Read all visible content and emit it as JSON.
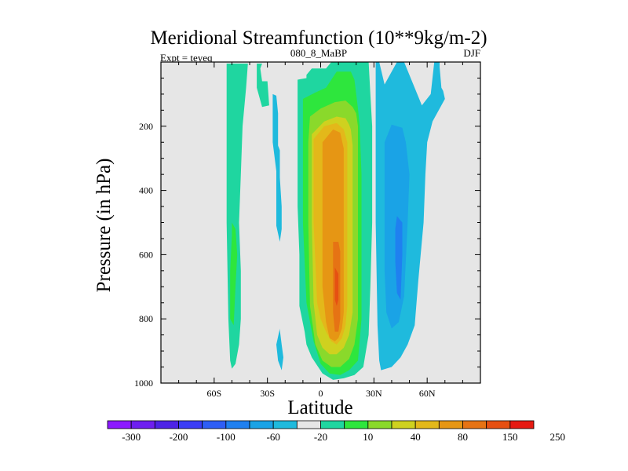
{
  "chart_data": {
    "type": "contour",
    "title": "Meridional Streamfunction (10**9kg/m-2)",
    "left_label": "Expt = teyeq",
    "center_label": "080_8_MaBP",
    "right_label": "DJF",
    "xlabel": "Latitude",
    "ylabel": "Pressure (in hPa)",
    "xlim": [
      -90,
      90
    ],
    "ylim": [
      1000,
      0
    ],
    "x_ticks": [
      {
        "value": -60,
        "label": "60S"
      },
      {
        "value": -30,
        "label": "30S"
      },
      {
        "value": 0,
        "label": "0"
      },
      {
        "value": 30,
        "label": "30N"
      },
      {
        "value": 60,
        "label": "60N"
      }
    ],
    "y_ticks": [
      {
        "value": 200,
        "label": "200"
      },
      {
        "value": 400,
        "label": "400"
      },
      {
        "value": 600,
        "label": "600"
      },
      {
        "value": 800,
        "label": "800"
      },
      {
        "value": 1000,
        "label": "1000"
      }
    ],
    "background_color": "#e6e6e6",
    "colorbar": {
      "colors": [
        "#8c1aff",
        "#6e1ff0",
        "#4d23e6",
        "#3b3df5",
        "#2e5ef5",
        "#1f80f0",
        "#1aa3e6",
        "#1fbadd",
        "#e6e6e6",
        "#1fd6a0",
        "#2ee63d",
        "#8ad92b",
        "#cfd11f",
        "#e3b81a",
        "#e69614",
        "#e67314",
        "#e65012",
        "#e61a12"
      ],
      "labels": [
        "-300",
        "-200",
        "-100",
        "-60",
        "-20",
        "10",
        "40",
        "80",
        "150",
        "250"
      ]
    },
    "contour_regions": [
      {
        "name": "sh-cell-outer",
        "level": 10,
        "color": "#1fd6a0",
        "lat": [
          -53,
          -41,
          -42,
          -44,
          -45,
          -46,
          -45,
          -45,
          -46,
          -48,
          -50,
          -51,
          -52,
          -53,
          -53
        ],
        "pres": [
          5,
          5,
          80,
          200,
          350,
          500,
          650,
          800,
          880,
          940,
          955,
          930,
          800,
          500,
          200
        ]
      },
      {
        "name": "sh-cell-inner",
        "level": 40,
        "color": "#2ee63d",
        "lat": [
          -50,
          -48,
          -47,
          -48,
          -49,
          -51,
          -51,
          -50
        ],
        "pres": [
          500,
          520,
          600,
          700,
          820,
          800,
          650,
          540
        ]
      },
      {
        "name": "sh-west-patch-a",
        "level": 10,
        "color": "#1fd6a0",
        "lat": [
          -36,
          -33,
          -34,
          -33,
          -30,
          -29,
          -33,
          -36
        ],
        "pres": [
          5,
          5,
          20,
          60,
          60,
          135,
          140,
          80
        ]
      },
      {
        "name": "sh-neg-patch-a",
        "level": -20,
        "color": "#1fbadd",
        "lat": [
          -27,
          -25,
          -24,
          -24,
          -24,
          -25,
          -27,
          -27
        ],
        "pres": [
          100,
          105,
          160,
          240,
          320,
          340,
          250,
          160
        ]
      },
      {
        "name": "sh-neg-patch-b",
        "level": -20,
        "color": "#1fbadd",
        "lat": [
          -24,
          -23,
          -23,
          -22,
          -22,
          -23,
          -25,
          -25
        ],
        "pres": [
          260,
          275,
          360,
          450,
          520,
          560,
          510,
          330
        ]
      },
      {
        "name": "sh-neg-patch-c",
        "level": -20,
        "color": "#1fbadd",
        "lat": [
          -23,
          -22,
          -21,
          -22,
          -24,
          -25,
          -23
        ],
        "pres": [
          835,
          880,
          920,
          960,
          930,
          880,
          830
        ]
      },
      {
        "name": "hadley-10",
        "level": 10,
        "color": "#1fd6a0",
        "lat": [
          -13,
          -8,
          -8,
          -5,
          3,
          6,
          7,
          12,
          20,
          27,
          28,
          29,
          29,
          28,
          27,
          24,
          19,
          13,
          7,
          1,
          -5,
          -8,
          -9,
          -12,
          -12,
          -13,
          -13,
          -13,
          -13
        ],
        "pres": [
          55,
          50,
          40,
          20,
          20,
          0,
          0,
          0,
          0,
          0,
          100,
          200,
          500,
          700,
          850,
          950,
          975,
          985,
          990,
          970,
          920,
          880,
          840,
          760,
          600,
          450,
          300,
          150,
          80
        ]
      },
      {
        "name": "hadley-40",
        "level": 40,
        "color": "#2ee63d",
        "lat": [
          -10,
          -3,
          3,
          9,
          17,
          19,
          21,
          22,
          23,
          23,
          21,
          16,
          11,
          5,
          0,
          -4,
          -8,
          -10,
          -10
        ],
        "pres": [
          115,
          95,
          80,
          30,
          30,
          55,
          145,
          200,
          350,
          800,
          930,
          960,
          975,
          970,
          940,
          870,
          750,
          500,
          250
        ]
      },
      {
        "name": "hadley-80",
        "level": 80,
        "color": "#8ad92b",
        "lat": [
          -6,
          0,
          8,
          14,
          18,
          20,
          21,
          21,
          19,
          16,
          11,
          6,
          1,
          -3,
          -6,
          -7,
          -7
        ],
        "pres": [
          170,
          145,
          125,
          120,
          140,
          160,
          200,
          800,
          880,
          925,
          950,
          950,
          930,
          880,
          760,
          500,
          250
        ]
      },
      {
        "name": "hadley-150",
        "level": 150,
        "color": "#cfd11f",
        "lat": [
          -5,
          2,
          9,
          14,
          16,
          17,
          18,
          18,
          16,
          13,
          9,
          5,
          1,
          -2,
          -4,
          -5,
          -5
        ],
        "pres": [
          225,
          185,
          170,
          175,
          195,
          210,
          260,
          780,
          850,
          890,
          910,
          910,
          890,
          850,
          750,
          500,
          300
        ]
      },
      {
        "name": "hadley-200",
        "level": 200,
        "color": "#e3b81a",
        "lat": [
          -4,
          2,
          9,
          13,
          15,
          15,
          14,
          12,
          9,
          6,
          3,
          0,
          -2,
          -4,
          -4
        ],
        "pres": [
          240,
          200,
          190,
          210,
          250,
          760,
          820,
          860,
          880,
          870,
          840,
          800,
          750,
          500,
          300
        ]
      },
      {
        "name": "hadley-250",
        "level": 250,
        "color": "#e69614",
        "lat": [
          1,
          7,
          11,
          13,
          13,
          12,
          10,
          8,
          5,
          3,
          1,
          1
        ],
        "pres": [
          250,
          210,
          220,
          270,
          780,
          830,
          860,
          870,
          860,
          810,
          700,
          400
        ]
      },
      {
        "name": "hadley-core-1",
        "level": 300,
        "color": "#e67314",
        "lat": [
          7,
          10,
          11,
          11,
          10,
          8,
          7,
          7
        ],
        "pres": [
          560,
          560,
          590,
          800,
          840,
          840,
          780,
          600
        ]
      },
      {
        "name": "hadley-core-2",
        "level": 350,
        "color": "#e65012",
        "lat": [
          8,
          10,
          10,
          9,
          8,
          8
        ],
        "pres": [
          640,
          660,
          740,
          760,
          740,
          660
        ]
      },
      {
        "name": "nh-cell-outer",
        "level": -20,
        "color": "#1fbadd",
        "lat": [
          31,
          33,
          36,
          43,
          47,
          57,
          62,
          64,
          67,
          67,
          68,
          69,
          70,
          63,
          60,
          59,
          58,
          55,
          53,
          49,
          45,
          40,
          34,
          33,
          32,
          31,
          31,
          31
        ],
        "pres": [
          0,
          0,
          70,
          0,
          0,
          135,
          100,
          0,
          0,
          15,
          80,
          90,
          115,
          185,
          250,
          350,
          500,
          680,
          820,
          880,
          920,
          950,
          960,
          930,
          820,
          500,
          200,
          50
        ]
      },
      {
        "name": "nh-cell-inner",
        "level": -60,
        "color": "#1aa3e6",
        "lat": [
          40,
          46,
          48,
          50,
          49,
          47,
          44,
          40,
          37,
          36,
          36,
          36
        ],
        "pres": [
          195,
          205,
          250,
          350,
          500,
          730,
          810,
          830,
          780,
          650,
          400,
          250
        ]
      },
      {
        "name": "nh-cell-core",
        "level": -100,
        "color": "#1f80f0",
        "lat": [
          43,
          46,
          46,
          45,
          43,
          42,
          42
        ],
        "pres": [
          480,
          500,
          600,
          740,
          720,
          620,
          520
        ]
      }
    ]
  }
}
